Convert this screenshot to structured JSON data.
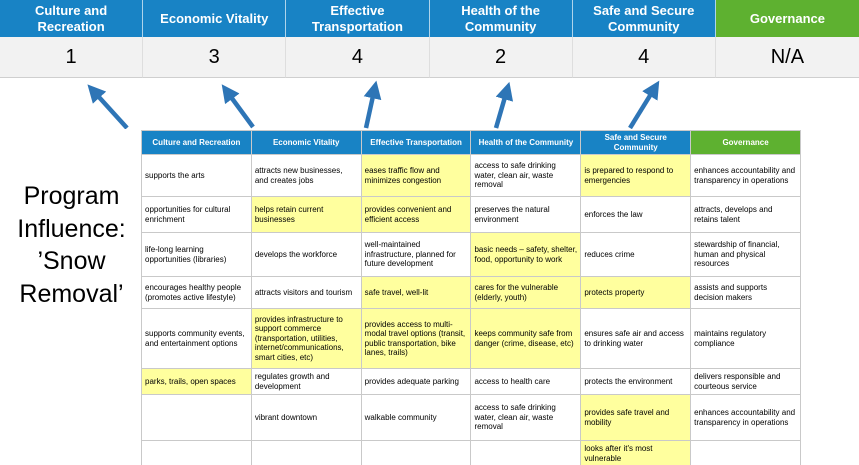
{
  "title": "Program Influence: ’Snow Removal’",
  "colors": {
    "header_blue": "#1883c5",
    "header_green": "#5eb130",
    "highlight_yellow": "#ffff9e",
    "arrow_blue": "#2e75b6",
    "score_bg": "#f2f2f2"
  },
  "summary": {
    "columns": [
      {
        "label": "Culture and Recreation",
        "score": "1",
        "accent": "blue"
      },
      {
        "label": "Economic Vitality",
        "score": "3",
        "accent": "blue"
      },
      {
        "label": "Effective Transportation",
        "score": "4",
        "accent": "blue"
      },
      {
        "label": "Health of the Community",
        "score": "2",
        "accent": "blue"
      },
      {
        "label": "Safe and Secure Community",
        "score": "4",
        "accent": "blue"
      },
      {
        "label": "Governance",
        "score": "N/A",
        "accent": "green"
      }
    ]
  },
  "table": {
    "headers": [
      {
        "label": "Culture and Recreation",
        "accent": "blue"
      },
      {
        "label": "Economic Vitality",
        "accent": "blue"
      },
      {
        "label": "Effective Transportation",
        "accent": "blue"
      },
      {
        "label": "Health of the Community",
        "accent": "blue"
      },
      {
        "label": "Safe and Secure Community",
        "accent": "blue"
      },
      {
        "label": "Governance",
        "accent": "green"
      }
    ],
    "rows": [
      [
        {
          "text": "supports the arts",
          "highlight": false
        },
        {
          "text": "attracts new businesses, and creates jobs",
          "highlight": false
        },
        {
          "text": "eases traffic flow and minimizes congestion",
          "highlight": true
        },
        {
          "text": "access to safe drinking water, clean air, waste removal",
          "highlight": false
        },
        {
          "text": "is prepared to respond to emergencies",
          "highlight": true
        },
        {
          "text": "enhances accountability and transparency in operations",
          "highlight": false
        }
      ],
      [
        {
          "text": "opportunities for cultural enrichment",
          "highlight": false
        },
        {
          "text": "helps retain current businesses",
          "highlight": true
        },
        {
          "text": "provides convenient and efficient access",
          "highlight": true
        },
        {
          "text": "preserves the natural environment",
          "highlight": false
        },
        {
          "text": "enforces the law",
          "highlight": false
        },
        {
          "text": "attracts, develops and retains talent",
          "highlight": false
        }
      ],
      [
        {
          "text": "life-long learning opportunities (libraries)",
          "highlight": false
        },
        {
          "text": "develops the workforce",
          "highlight": false
        },
        {
          "text": "well-maintained infrastructure, planned for future development",
          "highlight": false
        },
        {
          "text": "basic needs – safety, shelter, food, opportunity to work",
          "highlight": true
        },
        {
          "text": "reduces crime",
          "highlight": false
        },
        {
          "text": "stewardship of financial, human and physical resources",
          "highlight": false
        }
      ],
      [
        {
          "text": "encourages healthy people (promotes active lifestyle)",
          "highlight": false
        },
        {
          "text": "attracts visitors and tourism",
          "highlight": false
        },
        {
          "text": "safe travel, well-lit",
          "highlight": true
        },
        {
          "text": "cares for the vulnerable (elderly, youth)",
          "highlight": true
        },
        {
          "text": "protects property",
          "highlight": true
        },
        {
          "text": "assists and supports decision makers",
          "highlight": false
        }
      ],
      [
        {
          "text": "supports community events, and entertainment options",
          "highlight": false
        },
        {
          "text": "provides infrastructure to support commerce (transportation, utilities, internet/communications, smart cities, etc)",
          "highlight": true
        },
        {
          "text": "provides access to multi-modal travel options (transit, public transportation, bike lanes, trails)",
          "highlight": true
        },
        {
          "text": "keeps community safe from danger (crime, disease, etc)",
          "highlight": true
        },
        {
          "text": "ensures safe air and access to drinking water",
          "highlight": false
        },
        {
          "text": "maintains regulatory compliance",
          "highlight": false
        }
      ],
      [
        {
          "text": "parks, trails, open spaces",
          "highlight": true
        },
        {
          "text": "regulates growth and development",
          "highlight": false
        },
        {
          "text": "provides adequate parking",
          "highlight": false
        },
        {
          "text": "access to health care",
          "highlight": false
        },
        {
          "text": "protects the environment",
          "highlight": false
        },
        {
          "text": "delivers responsible and courteous service",
          "highlight": false
        }
      ],
      [
        {
          "text": "",
          "highlight": false
        },
        {
          "text": "vibrant downtown",
          "highlight": false
        },
        {
          "text": "walkable community",
          "highlight": false
        },
        {
          "text": "access to safe drinking water, clean air, waste removal",
          "highlight": false
        },
        {
          "text": "provides safe travel and mobility",
          "highlight": true
        },
        {
          "text": "enhances accountability and transparency in operations",
          "highlight": false
        }
      ],
      [
        {
          "text": "",
          "highlight": false
        },
        {
          "text": "",
          "highlight": false
        },
        {
          "text": "",
          "highlight": false
        },
        {
          "text": "",
          "highlight": false
        },
        {
          "text": "looks after it's most vulnerable",
          "highlight": true
        },
        {
          "text": "",
          "highlight": false
        }
      ]
    ]
  }
}
